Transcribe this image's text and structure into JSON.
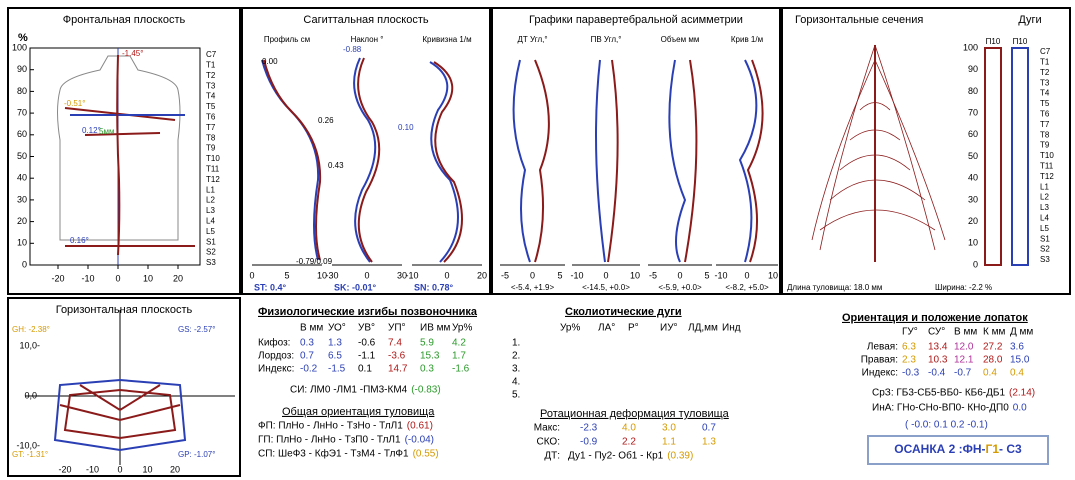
{
  "frontal": {
    "title": "Фронтальная плоскость",
    "unit": "%",
    "yticks": [
      0,
      10,
      20,
      30,
      40,
      50,
      60,
      70,
      80,
      90,
      100
    ],
    "xticks": [
      -20,
      -10,
      0,
      10,
      20
    ],
    "vertebrae": [
      "C7",
      "T1",
      "T2",
      "T3",
      "T4",
      "T5",
      "T6",
      "T7",
      "T8",
      "T9",
      "T10",
      "T11",
      "T12",
      "L1",
      "L2",
      "L3",
      "L4",
      "L5",
      "S1",
      "S2",
      "S3"
    ],
    "annotations": [
      "-1.45°",
      "-0.51°",
      "0.12°",
      "5мм",
      "0.16°"
    ]
  },
  "sagittal": {
    "title": "Сагиттальная плоскость",
    "columns": [
      {
        "head": "Профиль см",
        "xticks": [
          0,
          5,
          10
        ],
        "summary": "ST: 0.4°"
      },
      {
        "head": "Наклон °",
        "xticks": [
          -30,
          0,
          30
        ],
        "summary": "SK: -0.01°"
      },
      {
        "head": "Кривизна 1/м",
        "xticks": [
          -10,
          0,
          20
        ],
        "summary": "SN: 0.78°"
      }
    ],
    "annotations": [
      "0.00",
      "0.26",
      "0.43",
      "0.10",
      "-0.79/0.09",
      "-0.88"
    ]
  },
  "asymmetry": {
    "title": "Графики паравертебральной асимметрии",
    "columns": [
      {
        "head": "ДТ Угл,°",
        "xticks": [
          -5,
          0,
          5
        ],
        "range": "<-5.4, +1.9>"
      },
      {
        "head": "ПВ Угл,°",
        "xticks": [
          -10,
          0,
          10
        ],
        "range": "<-14.5, +0.0>"
      },
      {
        "head": "Объем мм",
        "xticks": [
          -5,
          0,
          5
        ],
        "range": "<-5.9, +0.0>"
      },
      {
        "head": "Крив 1/м",
        "xticks": [
          -10,
          0,
          10
        ],
        "range": "<-8.2, +5.0>"
      }
    ]
  },
  "sections": {
    "title": "Горизонтальные сечения",
    "arcs_title": "Дуги",
    "arc_labels": [
      "П10",
      "П10"
    ],
    "length": "Длина туловища: 18.0 мм",
    "width": "Ширина: -2.2 %"
  },
  "horizontal": {
    "title": "Горизонтальная плоскость",
    "angles": [
      "GH: -2.38°",
      "GS: -2.57°",
      "GT: -1.31°",
      "GP: -1.07°"
    ],
    "yticks": [
      "10,0-",
      "0,0-",
      "-10,0-"
    ],
    "xticks": [
      -20,
      -10,
      0,
      10,
      20
    ]
  },
  "curves": {
    "title": "Физиологические изгибы позвоночника",
    "headers": [
      "В мм",
      "УО°",
      "УВ°",
      "УП°",
      "ИВ мм",
      "Ур%"
    ],
    "rows": [
      {
        "label": "Кифоз:",
        "values": [
          "0.3",
          "1.3",
          "-0.6",
          "7.4",
          "5.9",
          "4.2"
        ]
      },
      {
        "label": "Лордоз:",
        "values": [
          "0.7",
          "6.5",
          "-1.1",
          "-3.6",
          "15.3",
          "1.7"
        ]
      },
      {
        "label": "Индекс:",
        "values": [
          "-0.2",
          "-1.5",
          "0.1",
          "14.7",
          "0.3",
          "-1.6"
        ]
      }
    ],
    "si": "СИ: ЛМ0 -ЛМ1 -ПМ3-КМ4",
    "si_value": "(-0.83)"
  },
  "orientation": {
    "title": "Общая ориентация туловища",
    "rows": [
      {
        "text": "ФП: ПлНо - ЛнНо - ТзНо - ТлЛ1",
        "value": "(0.61)"
      },
      {
        "text": "ГП: ПлНо - ЛнНо - ТзП0 - ТлЛ1",
        "value": "(-0.04)"
      },
      {
        "text": "СП: ШеФ3 - КфЭ1 - ТзМ4 - ТлФ1",
        "value": "(0.55)"
      }
    ]
  },
  "scoliosis": {
    "title": "Сколиотические дуги",
    "headers": [
      "Ур%",
      "ЛА°",
      "Р°",
      "ИУ°",
      "ЛД,мм",
      "Инд"
    ],
    "rows": [
      "1.",
      "2.",
      "3.",
      "4.",
      "5."
    ]
  },
  "rotation": {
    "title": "Ротационная деформация туловища",
    "rows": [
      {
        "label": "Макс:",
        "values": [
          "-2.3",
          "4.0",
          "3.0",
          "0.7"
        ]
      },
      {
        "label": "СКО:",
        "values": [
          "-0.9",
          "2.2",
          "1.1",
          "1.3"
        ]
      }
    ],
    "dt_label": "ДТ:",
    "dt": "Ду1  -  Пу2-  Об1  -  Кр1",
    "dt_value": "(0.39)"
  },
  "scapulae": {
    "title": "Ориентация и положение лопаток",
    "headers": [
      "ГУ°",
      "СУ°",
      "В мм",
      "К мм",
      "Д мм"
    ],
    "rows": [
      {
        "label": "Левая:",
        "values": [
          "6.3",
          "13.4",
          "12.0",
          "27.2",
          "3.6"
        ]
      },
      {
        "label": "Правая:",
        "values": [
          "2.3",
          "10.3",
          "12.1",
          "28.0",
          "15.0"
        ]
      },
      {
        "label": "Индекс:",
        "values": [
          "-0.3",
          "-0.4",
          "-0.7",
          "0.4",
          "0.4"
        ]
      }
    ],
    "srz": "СрЗ: ГБ3-СБ5-ВБ0- КБ6-ДБ1",
    "srz_value": "(2.14)",
    "ina": "ИнА: ГНо-СНо-ВП0- КНо-ДП0",
    "ina_value": "0.0",
    "indices": "( -0.0: 0.1  0.2  -0.1)",
    "posture": [
      "ОСАНКА 2 :ФН-",
      "Г1",
      "- С3"
    ]
  }
}
